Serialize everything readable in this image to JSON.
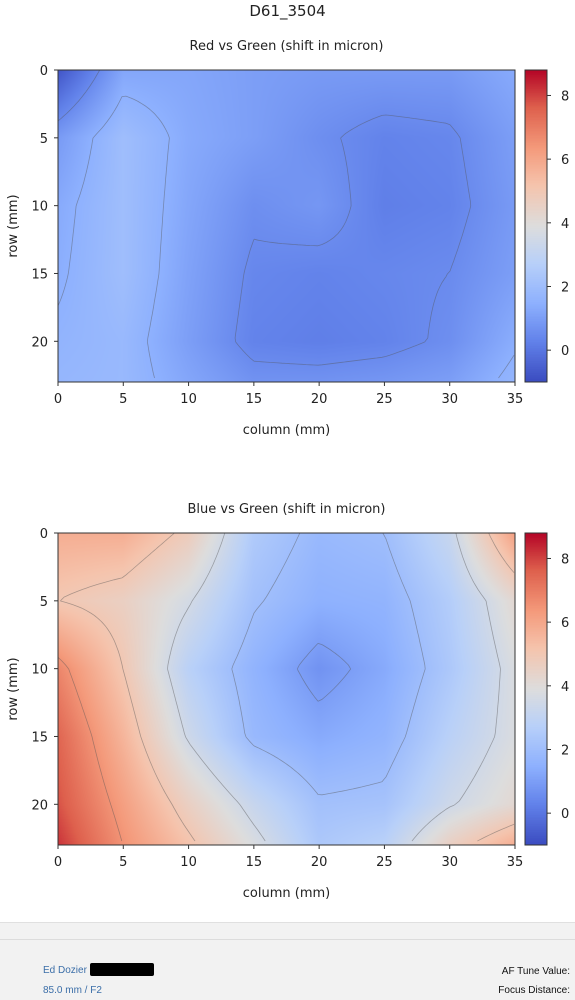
{
  "page": {
    "title": "D61_3504"
  },
  "chart_data": [
    {
      "type": "heatmap",
      "title": "Red vs Green (shift in micron)",
      "xlabel": "column (mm)",
      "ylabel": "row (mm)",
      "xlim": [
        0,
        35
      ],
      "ylim": [
        23,
        0
      ],
      "xticks": [
        0,
        5,
        10,
        15,
        20,
        25,
        30,
        35
      ],
      "yticks": [
        0,
        5,
        10,
        15,
        20
      ],
      "colorbar": {
        "min": -1,
        "max": 8.8,
        "ticks": [
          0,
          2,
          4,
          6,
          8
        ],
        "colormap": "coolwarm"
      },
      "contour_levels": [
        0.5,
        1.5
      ],
      "grid_x": [
        0,
        5,
        10,
        15,
        20,
        25,
        30,
        35
      ],
      "grid_y": [
        0,
        5,
        10,
        15,
        20,
        23
      ],
      "z": [
        [
          -0.8,
          1.2,
          1.2,
          1.0,
          0.9,
          0.9,
          0.9,
          1.3
        ],
        [
          0.9,
          2.0,
          1.3,
          1.0,
          0.6,
          0.3,
          0.4,
          1.0
        ],
        [
          1.3,
          2.0,
          1.2,
          0.6,
          0.8,
          0.2,
          0.3,
          0.9
        ],
        [
          1.4,
          2.0,
          1.1,
          0.4,
          0.3,
          0.4,
          0.5,
          1.0
        ],
        [
          1.6,
          1.8,
          1.0,
          0.3,
          0.2,
          0.3,
          0.6,
          1.4
        ],
        [
          1.7,
          1.8,
          1.2,
          0.7,
          0.7,
          0.8,
          1.0,
          1.7
        ]
      ]
    },
    {
      "type": "heatmap",
      "title": "Blue vs Green (shift in micron)",
      "xlabel": "column (mm)",
      "ylabel": "row (mm)",
      "xlim": [
        0,
        35
      ],
      "ylim": [
        23,
        0
      ],
      "xticks": [
        0,
        5,
        10,
        15,
        20,
        25,
        30,
        35
      ],
      "yticks": [
        0,
        5,
        10,
        15,
        20
      ],
      "colorbar": {
        "min": -1,
        "max": 8.8,
        "ticks": [
          0,
          2,
          4,
          6,
          8
        ],
        "colormap": "coolwarm"
      },
      "contour_levels": [
        1,
        2,
        3.5,
        5,
        6.5
      ],
      "grid_x": [
        0,
        5,
        10,
        15,
        20,
        25,
        30,
        35
      ],
      "grid_y": [
        0,
        5,
        10,
        15,
        20,
        23
      ],
      "z": [
        [
          5.8,
          5.8,
          4.8,
          2.5,
          1.8,
          2.0,
          3.2,
          6.2
        ],
        [
          5.0,
          4.6,
          3.6,
          2.1,
          1.5,
          1.6,
          2.6,
          4.2
        ],
        [
          6.8,
          5.0,
          2.8,
          1.6,
          0.7,
          1.3,
          2.4,
          3.8
        ],
        [
          7.5,
          5.6,
          3.4,
          1.8,
          1.3,
          1.6,
          2.8,
          3.8
        ],
        [
          7.8,
          6.2,
          4.6,
          3.2,
          2.1,
          2.2,
          3.4,
          4.2
        ],
        [
          8.2,
          6.5,
          5.2,
          3.8,
          2.4,
          2.8,
          4.6,
          5.8
        ]
      ]
    }
  ],
  "footer": {
    "name": "Ed Dozier",
    "lens": "85.0 mm / F2",
    "af_tune": "AF Tune Value:",
    "focus_distance": "Focus Distance:"
  }
}
